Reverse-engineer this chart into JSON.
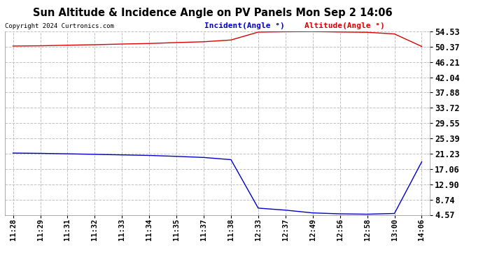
{
  "title": "Sun Altitude & Incidence Angle on PV Panels Mon Sep 2 14:06",
  "copyright": "Copyright 2024 Curtronics.com",
  "legend_incident": "Incident(Angle °)",
  "legend_altitude": "Altitude(Angle °)",
  "yticks": [
    4.57,
    8.74,
    12.9,
    17.06,
    21.23,
    25.39,
    29.55,
    33.72,
    37.88,
    42.04,
    46.21,
    50.37,
    54.53
  ],
  "xtick_labels": [
    "11:28",
    "11:29",
    "11:31",
    "11:32",
    "11:33",
    "11:34",
    "11:35",
    "11:37",
    "11:38",
    "12:33",
    "12:37",
    "12:49",
    "12:56",
    "12:58",
    "13:00",
    "14:06"
  ],
  "background_color": "#ffffff",
  "grid_color": "#bbbbbb",
  "red_color": "#dd0000",
  "blue_color": "#0000cc",
  "red_x": [
    0,
    1,
    2,
    3,
    4,
    5,
    6,
    7,
    8,
    9,
    10,
    11,
    12,
    13,
    14,
    15
  ],
  "red_y": [
    50.55,
    50.62,
    50.78,
    50.92,
    51.1,
    51.25,
    51.5,
    51.72,
    52.2,
    54.35,
    54.45,
    54.5,
    54.38,
    54.3,
    53.85,
    50.45
  ],
  "blue_x": [
    0,
    1,
    2,
    3,
    4,
    5,
    6,
    7,
    8,
    9,
    10,
    11,
    12,
    13,
    14,
    15
  ],
  "blue_y": [
    21.4,
    21.32,
    21.2,
    21.05,
    20.9,
    20.75,
    20.5,
    20.2,
    19.6,
    6.4,
    5.85,
    5.1,
    4.85,
    4.75,
    4.95,
    19.0
  ],
  "ylim_min": 4.57,
  "ylim_max": 54.53
}
